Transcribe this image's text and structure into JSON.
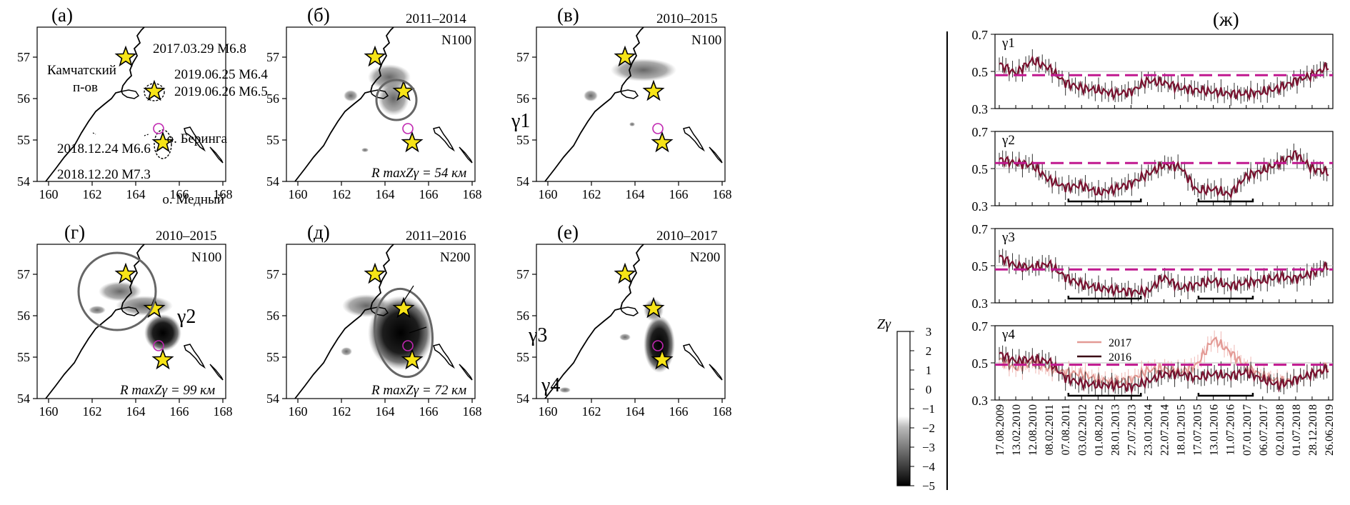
{
  "map_axes": {
    "xticks": [
      "160",
      "162",
      "164",
      "166",
      "168"
    ],
    "yticks": [
      "57",
      "56",
      "55",
      "54"
    ]
  },
  "panels": [
    {
      "label": "(а)",
      "period": "",
      "n": "",
      "radius": ""
    },
    {
      "label": "(б)",
      "period": "2011–2014",
      "n": "N100",
      "radius": "R maxZγ = 54 км"
    },
    {
      "label": "(в)",
      "period": "2010–2015",
      "n": "N100",
      "radius": ""
    },
    {
      "label": "(г)",
      "period": "2010–2015",
      "n": "N100",
      "radius": "R maxZγ = 99 км"
    },
    {
      "label": "(д)",
      "period": "2011–2016",
      "n": "N200",
      "radius": "R maxZγ = 72 км"
    },
    {
      "label": "(е)",
      "period": "2010–2017",
      "n": "N200",
      "radius": ""
    }
  ],
  "annotations": {
    "kamchatka_line1": "Камчатский",
    "kamchatka_line2": "п-ов",
    "eq1": "2017.03.29 M6.8",
    "eq2": "2019.06.25 M6.4",
    "eq3": "2019.06.26 M6.5",
    "eq4": "2018.12.24 M6.6",
    "eq5": "2018.12.20 M7.3",
    "bering": "о. Беринга",
    "medny": "о. Медный",
    "gamma1": "γ1",
    "gamma2": "γ2",
    "gamma3": "γ3",
    "gamma4": "γ4"
  },
  "colorbar": {
    "label": "Zγ",
    "ticks": [
      "3",
      "2",
      "1",
      "0",
      "−1",
      "−2",
      "−3",
      "−4",
      "−5"
    ]
  },
  "ts_panel": {
    "label": "(ж)",
    "yticks": [
      "0.7",
      "0.5",
      "0.3"
    ],
    "subplots": [
      {
        "name": "γ1"
      },
      {
        "name": "γ2"
      },
      {
        "name": "γ3"
      },
      {
        "name": "γ4"
      }
    ],
    "legend": [
      "2017",
      "2016"
    ],
    "dates": [
      "17.08.2009",
      "13.02.2010",
      "12.08.2010",
      "08.02.2011",
      "07.08.2011",
      "03.02.2012",
      "01.08.2012",
      "28.01.2013",
      "27.07.2013",
      "23.01.2014",
      "22.07.2014",
      "18.01.2015",
      "17.07.2015",
      "13.01.2016",
      "11.07.2016",
      "07.01.2017",
      "06.07.2017",
      "02.01.2018",
      "01.07.2018",
      "28.12.2018",
      "26.06.2019"
    ]
  },
  "chart_data": {
    "type": "line",
    "title": "(ж)",
    "xlabel": "",
    "ylabel": "",
    "ylim": [
      0.3,
      0.7
    ],
    "categories": [
      "17.08.2009",
      "13.02.2010",
      "12.08.2010",
      "08.02.2011",
      "07.08.2011",
      "03.02.2012",
      "01.08.2012",
      "28.01.2013",
      "27.07.2013",
      "23.01.2014",
      "22.07.2014",
      "18.01.2015",
      "17.07.2015",
      "13.01.2016",
      "11.07.2016",
      "07.01.2017",
      "06.07.2017",
      "02.01.2018",
      "01.07.2018",
      "28.12.2018",
      "26.06.2019"
    ],
    "series": [
      {
        "name": "γ1",
        "threshold": 0.48,
        "values": [
          0.54,
          0.49,
          0.56,
          0.52,
          0.44,
          0.41,
          0.4,
          0.38,
          0.39,
          0.45,
          0.44,
          0.41,
          0.4,
          0.39,
          0.38,
          0.38,
          0.39,
          0.41,
          0.45,
          0.48,
          0.53
        ]
      },
      {
        "name": "γ2",
        "threshold": 0.53,
        "values": [
          0.55,
          0.53,
          0.52,
          0.44,
          0.4,
          0.41,
          0.37,
          0.39,
          0.42,
          0.47,
          0.52,
          0.51,
          0.38,
          0.39,
          0.36,
          0.46,
          0.49,
          0.53,
          0.58,
          0.5,
          0.48
        ]
      },
      {
        "name": "γ3",
        "threshold": 0.48,
        "values": [
          0.55,
          0.5,
          0.49,
          0.51,
          0.44,
          0.4,
          0.38,
          0.37,
          0.36,
          0.36,
          0.44,
          0.38,
          0.4,
          0.42,
          0.39,
          0.41,
          0.42,
          0.44,
          0.43,
          0.46,
          0.5
        ]
      },
      {
        "name": "2016",
        "threshold": 0.49,
        "values": [
          0.55,
          0.51,
          0.52,
          0.51,
          0.42,
          0.39,
          0.38,
          0.38,
          0.37,
          0.4,
          0.44,
          0.44,
          0.42,
          0.44,
          0.43,
          0.45,
          0.41,
          0.38,
          0.41,
          0.44,
          0.47
        ]
      },
      {
        "name": "2017",
        "values": [
          0.52,
          0.47,
          0.5,
          0.47,
          0.45,
          0.44,
          0.41,
          0.4,
          0.41,
          0.46,
          0.47,
          0.45,
          0.49,
          0.63,
          0.56,
          0.48,
          0.43,
          0.4,
          0.41,
          0.44,
          0.48
        ]
      }
    ]
  }
}
